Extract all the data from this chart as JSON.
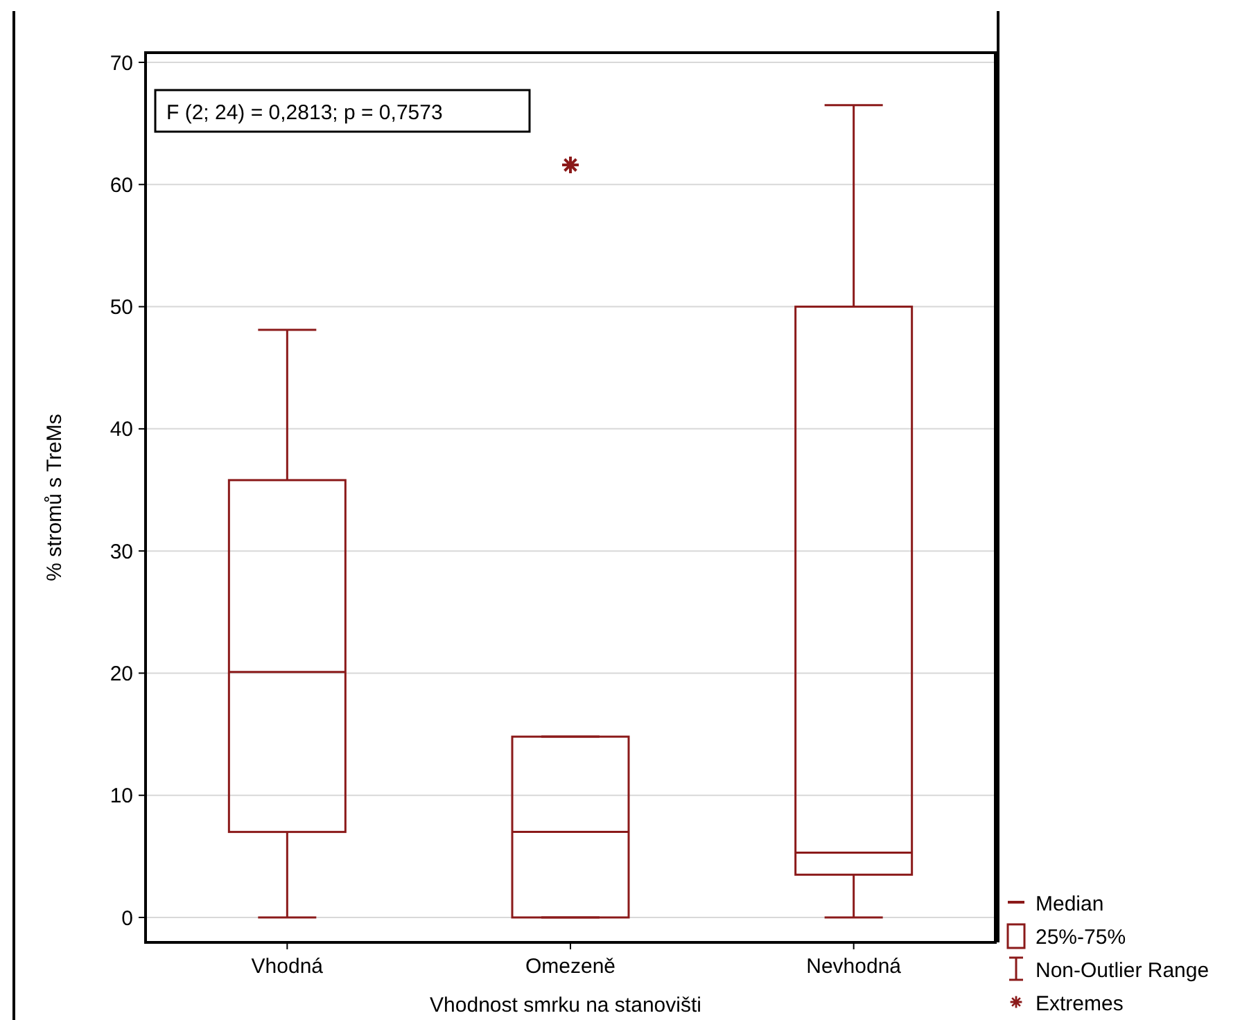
{
  "chart_data": {
    "type": "box",
    "xlabel": "Vhodnost smrku na stanovišti",
    "ylabel": "% stromů s TreMs",
    "categories": [
      "Vhodná",
      "Omezeně",
      "Nevhodná"
    ],
    "color": "#8b1a1a",
    "boxes": [
      {
        "low": 0,
        "q1": 7.0,
        "median": 20.1,
        "q3": 35.8,
        "high": 48.1
      },
      {
        "low": 0,
        "q1": 0,
        "median": 7.0,
        "q3": 14.8,
        "high": 14.8
      },
      {
        "low": 0,
        "q1": 3.5,
        "median": 5.3,
        "q3": 50,
        "high": 66.5
      }
    ],
    "series": [
      {
        "type": "scatter",
        "name": "Extremes",
        "color": "#8b1a1a",
        "x": [
          "Omezeně"
        ],
        "values": [
          61.6
        ],
        "marker": "cross"
      }
    ],
    "ylim": [
      0,
      70
    ],
    "yticks": [
      0,
      10,
      20,
      30,
      40,
      50,
      60,
      70
    ],
    "grid": "y",
    "legend": "bottom right",
    "annotations": [
      "F (2; 24) = 0,2813; p = 0,7573",
      "Median",
      "25%-75%",
      "Non-Outlier Range"
    ]
  }
}
